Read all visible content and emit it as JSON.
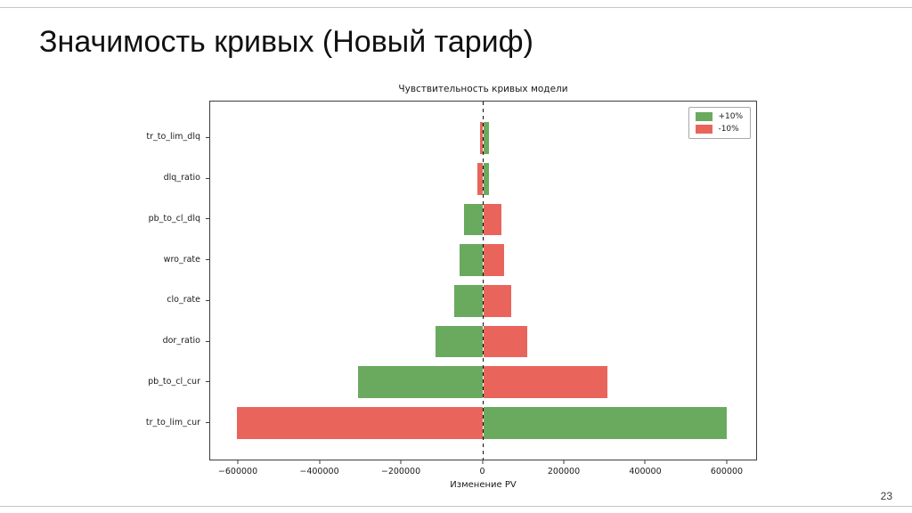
{
  "slide": {
    "title": "Значимость кривых (Новый тариф)",
    "page_number": "23"
  },
  "chart_data": {
    "type": "bar",
    "orientation": "horizontal",
    "title": "Чувствительность кривых модели",
    "xlabel": "Изменение PV",
    "xlim": [
      -670000,
      670000
    ],
    "grid": false,
    "legend_position": "upper right",
    "zero_line": true,
    "x_ticks": [
      {
        "value": -600000,
        "label": "−600000"
      },
      {
        "value": -400000,
        "label": "−400000"
      },
      {
        "value": -200000,
        "label": "−200000"
      },
      {
        "value": 0,
        "label": "0"
      },
      {
        "value": 200000,
        "label": "200000"
      },
      {
        "value": 400000,
        "label": "400000"
      },
      {
        "value": 600000,
        "label": "600000"
      }
    ],
    "categories": [
      "tr_to_lim_dlq",
      "dlq_ratio",
      "pb_to_cl_dlq",
      "wro_rate",
      "clo_rate",
      "dor_ratio",
      "pb_to_cl_cur",
      "tr_to_lim_cur"
    ],
    "series": [
      {
        "name": "+10%",
        "color": "#6aaa5f",
        "values": [
          15000,
          15000,
          -47000,
          -57000,
          -70000,
          -116000,
          -308000,
          598000
        ]
      },
      {
        "name": "-10%",
        "color": "#e9655c",
        "values": [
          -8000,
          -14000,
          45000,
          52000,
          68000,
          108000,
          304000,
          -604000
        ]
      }
    ]
  }
}
